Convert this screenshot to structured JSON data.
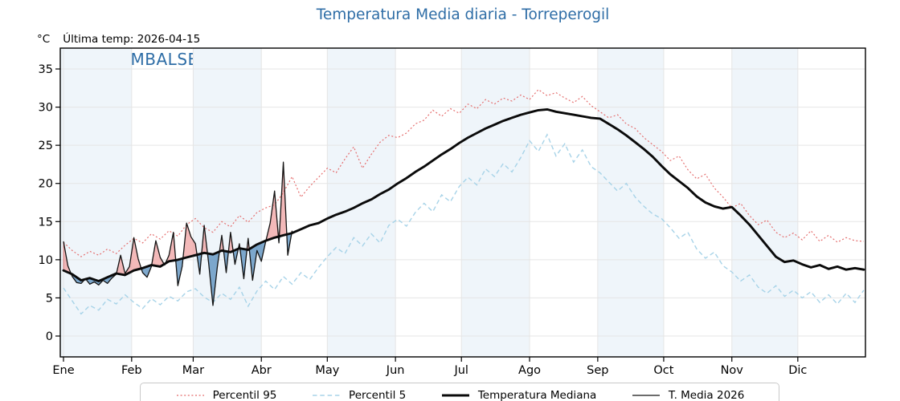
{
  "title": "Temperatura Media diaria - Torreperogil",
  "header": {
    "unit": "°C",
    "last_temp": "Última temp: 2026-04-15"
  },
  "watermark": "WWW.EMBALSES.NET",
  "colors": {
    "title": "#2e6da6",
    "watermark": "#2e6da6",
    "band": "#eff5fa",
    "grid": "#e5e5e5",
    "p95": "#e46a6a",
    "p5": "#a7d3e8",
    "median": "#0a0a0a",
    "t2026": "#141414",
    "fill_above": "#f0a8a8",
    "fill_above_edge": "#c25b5b",
    "fill_below": "#5f93c0",
    "fill_below_edge": "#3a6291",
    "axis_text": "#000000",
    "spine": "#000000",
    "legend_border": "#c9c9c9"
  },
  "axis": {
    "y_ticks": [
      0,
      5,
      10,
      15,
      20,
      25,
      30,
      35
    ],
    "ylim": [
      -2.7,
      37.7
    ],
    "days_in_year": 365,
    "months": [
      {
        "label": "Ene",
        "start_day": 1,
        "shaded": true
      },
      {
        "label": "Feb",
        "start_day": 32,
        "shaded": false
      },
      {
        "label": "Mar",
        "start_day": 60,
        "shaded": true
      },
      {
        "label": "Abr",
        "start_day": 91,
        "shaded": false
      },
      {
        "label": "May",
        "start_day": 121,
        "shaded": true
      },
      {
        "label": "Jun",
        "start_day": 152,
        "shaded": false
      },
      {
        "label": "Jul",
        "start_day": 182,
        "shaded": true
      },
      {
        "label": "Ago",
        "start_day": 213,
        "shaded": false
      },
      {
        "label": "Sep",
        "start_day": 244,
        "shaded": true
      },
      {
        "label": "Oct",
        "start_day": 274,
        "shaded": false
      },
      {
        "label": "Nov",
        "start_day": 305,
        "shaded": true
      },
      {
        "label": "Dic",
        "start_day": 335,
        "shaded": false
      }
    ]
  },
  "legend": {
    "items": [
      {
        "label": "Percentil 95",
        "color": "#e46a6a",
        "dash": "2 2.6",
        "width": 1.2
      },
      {
        "label": "Percentil 5",
        "color": "#a7d3e8",
        "dash": "5.5 3.8",
        "width": 1.4
      },
      {
        "label": "Temperatura Mediana",
        "color": "#0a0a0a",
        "dash": "",
        "width": 3
      },
      {
        "label": "T. Media 2026",
        "color": "#141414",
        "dash": "",
        "width": 1.2
      }
    ]
  },
  "chart_data": {
    "type": "line",
    "title": "Temperatura Media diaria - Torreperogil",
    "xlabel": "",
    "ylabel": "°C",
    "x_unit": "day_of_year",
    "x_tick_labels": [
      "Ene",
      "Feb",
      "Mar",
      "Abr",
      "May",
      "Jun",
      "Jul",
      "Ago",
      "Sep",
      "Oct",
      "Nov",
      "Dic"
    ],
    "ylim": [
      -2.7,
      37.7
    ],
    "series": [
      {
        "name": "Percentil 95",
        "style": "dotted",
        "color": "#e46a6a",
        "day_start": 1,
        "day_step": 4,
        "values": [
          12.3,
          11.2,
          10.4,
          11.1,
          10.6,
          11.4,
          10.8,
          11.9,
          12.8,
          12.2,
          13.4,
          12.7,
          13.8,
          13.1,
          14.6,
          15.4,
          14.2,
          13.6,
          15.0,
          14.3,
          15.8,
          14.9,
          16.2,
          16.8,
          17.2,
          18.8,
          20.9,
          18.2,
          19.6,
          20.8,
          22.0,
          21.4,
          23.2,
          24.8,
          22.0,
          23.8,
          25.4,
          26.3,
          26.0,
          26.6,
          27.8,
          28.3,
          29.6,
          28.8,
          29.8,
          29.2,
          30.4,
          29.8,
          31.0,
          30.4,
          31.2,
          30.8,
          31.6,
          31.0,
          32.3,
          31.5,
          31.9,
          31.2,
          30.6,
          31.4,
          30.2,
          29.4,
          28.6,
          29.0,
          27.8,
          27.2,
          26.0,
          25.1,
          24.2,
          23.0,
          23.6,
          21.8,
          20.6,
          21.2,
          19.4,
          18.2,
          16.8,
          17.4,
          15.8,
          14.6,
          15.2,
          13.6,
          12.9,
          13.5,
          12.6,
          13.8,
          12.4,
          13.2,
          12.3,
          12.9,
          12.5,
          12.4
        ]
      },
      {
        "name": "Percentil 5",
        "style": "dashed",
        "color": "#a7d3e8",
        "day_start": 1,
        "day_step": 4,
        "values": [
          6.3,
          4.6,
          2.9,
          4.0,
          3.4,
          4.8,
          4.2,
          5.4,
          4.4,
          3.6,
          4.9,
          4.1,
          5.2,
          4.6,
          5.8,
          6.2,
          5.1,
          4.4,
          5.6,
          4.8,
          6.4,
          3.9,
          5.9,
          7.2,
          6.1,
          7.8,
          6.8,
          8.3,
          7.4,
          9.0,
          10.4,
          11.6,
          10.8,
          12.9,
          11.8,
          13.4,
          12.2,
          14.5,
          15.3,
          14.4,
          16.2,
          17.4,
          16.3,
          18.5,
          17.6,
          19.6,
          20.8,
          19.8,
          21.9,
          20.9,
          22.6,
          21.5,
          23.4,
          25.6,
          24.2,
          26.4,
          23.6,
          25.2,
          22.8,
          24.4,
          22.2,
          21.4,
          20.2,
          19.0,
          20.0,
          18.2,
          17.0,
          16.0,
          15.4,
          14.2,
          12.8,
          13.6,
          11.4,
          10.2,
          11.0,
          9.2,
          8.4,
          7.2,
          8.0,
          6.4,
          5.6,
          6.6,
          5.2,
          6.0,
          5.0,
          5.8,
          4.4,
          5.4,
          4.2,
          5.6,
          4.4,
          6.0
        ]
      },
      {
        "name": "Temperatura Mediana",
        "style": "solid-thick",
        "color": "#0a0a0a",
        "day_start": 1,
        "day_step": 4,
        "values": [
          8.6,
          8.1,
          7.3,
          7.6,
          7.2,
          7.7,
          8.2,
          8.0,
          8.6,
          8.9,
          9.3,
          9.1,
          9.8,
          10.0,
          10.3,
          10.6,
          10.9,
          10.7,
          11.2,
          11.0,
          11.5,
          11.3,
          12.0,
          12.5,
          12.9,
          13.2,
          13.5,
          14.0,
          14.5,
          14.8,
          15.4,
          15.9,
          16.3,
          16.8,
          17.4,
          17.9,
          18.6,
          19.2,
          20.0,
          20.7,
          21.5,
          22.2,
          23.0,
          23.8,
          24.5,
          25.3,
          26.0,
          26.6,
          27.2,
          27.7,
          28.2,
          28.6,
          29.0,
          29.3,
          29.6,
          29.7,
          29.4,
          29.2,
          29.0,
          28.8,
          28.6,
          28.5,
          27.8,
          27.1,
          26.3,
          25.4,
          24.5,
          23.5,
          22.3,
          21.2,
          20.3,
          19.4,
          18.3,
          17.5,
          17.0,
          16.7,
          16.9,
          15.8,
          14.6,
          13.2,
          11.8,
          10.4,
          9.7,
          9.9,
          9.4,
          9.0,
          9.3,
          8.8,
          9.1,
          8.7,
          8.9,
          8.7
        ]
      },
      {
        "name": "T. Media 2026",
        "style": "solid-thin",
        "color": "#141414",
        "day_start": 1,
        "day_step": 2,
        "values": [
          12.4,
          9.2,
          7.8,
          7.0,
          6.9,
          7.5,
          6.8,
          7.1,
          6.7,
          7.3,
          6.9,
          7.6,
          8.1,
          10.6,
          8.2,
          9.1,
          12.9,
          10.1,
          8.3,
          7.7,
          9.1,
          12.5,
          10.3,
          9.3,
          10.6,
          13.6,
          6.6,
          9.1,
          14.8,
          13.0,
          12.1,
          8.1,
          14.5,
          9.6,
          4.0,
          9.1,
          13.2,
          8.3,
          13.6,
          9.4,
          12.1,
          7.5,
          12.8,
          7.3,
          11.2,
          9.8,
          12.4,
          14.8,
          19.0,
          12.2,
          22.8,
          10.6,
          13.8
        ]
      }
    ],
    "fill_between": {
      "upper_series": "T. Media 2026",
      "baseline_series": "Temperatura Mediana",
      "above_color": "#f0a8a8",
      "below_color": "#5f93c0"
    }
  }
}
